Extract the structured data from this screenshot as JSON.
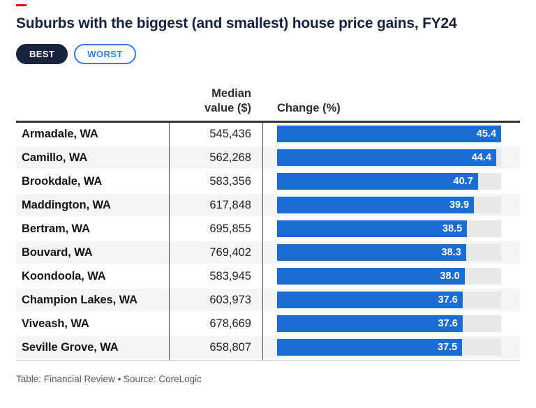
{
  "brand": {
    "dash_color": "#e30613"
  },
  "header": {
    "title": "Suburbs with the biggest (and smallest) house price gains, FY24",
    "toggles": [
      {
        "label": "BEST",
        "active": true
      },
      {
        "label": "WORST",
        "active": false
      }
    ]
  },
  "table": {
    "columns": {
      "median_line1": "Median",
      "median_line2": "value ($)",
      "change": "Change (%)"
    }
  },
  "chart_data": {
    "type": "bar",
    "title": "Suburbs with the biggest (and smallest) house price gains, FY24",
    "xlabel": "Change (%)",
    "xlim": [
      0,
      45.4
    ],
    "bar_color": "#1a6ed3",
    "track_color": "#e8e8e8",
    "categories": [
      "Armadale, WA",
      "Camillo, WA",
      "Brookdale, WA",
      "Maddington, WA",
      "Bertram, WA",
      "Bouvard, WA",
      "Koondoola, WA",
      "Champion Lakes, WA",
      "Viveash, WA",
      "Seville Grove, WA"
    ],
    "values": [
      45.4,
      44.4,
      40.7,
      39.9,
      38.5,
      38.3,
      38.0,
      37.6,
      37.6,
      37.5
    ],
    "rows": [
      {
        "suburb": "Armadale, WA",
        "median": 545436,
        "median_display": "545,436",
        "change": 45.4,
        "change_display": "45.4"
      },
      {
        "suburb": "Camillo, WA",
        "median": 562268,
        "median_display": "562,268",
        "change": 44.4,
        "change_display": "44.4"
      },
      {
        "suburb": "Brookdale, WA",
        "median": 583356,
        "median_display": "583,356",
        "change": 40.7,
        "change_display": "40.7"
      },
      {
        "suburb": "Maddington, WA",
        "median": 617848,
        "median_display": "617,848",
        "change": 39.9,
        "change_display": "39.9"
      },
      {
        "suburb": "Bertram, WA",
        "median": 695855,
        "median_display": "695,855",
        "change": 38.5,
        "change_display": "38.5"
      },
      {
        "suburb": "Bouvard, WA",
        "median": 769402,
        "median_display": "769,402",
        "change": 38.3,
        "change_display": "38.3"
      },
      {
        "suburb": "Koondoola, WA",
        "median": 583945,
        "median_display": "583,945",
        "change": 38.0,
        "change_display": "38.0"
      },
      {
        "suburb": "Champion Lakes, WA",
        "median": 603973,
        "median_display": "603,973",
        "change": 37.6,
        "change_display": "37.6"
      },
      {
        "suburb": "Viveash, WA",
        "median": 678669,
        "median_display": "678,669",
        "change": 37.6,
        "change_display": "37.6"
      },
      {
        "suburb": "Seville Grove, WA",
        "median": 658807,
        "median_display": "658,807",
        "change": 37.5,
        "change_display": "37.5"
      }
    ]
  },
  "footer": {
    "credit": "Table: Financial Review • Source: CoreLogic"
  }
}
